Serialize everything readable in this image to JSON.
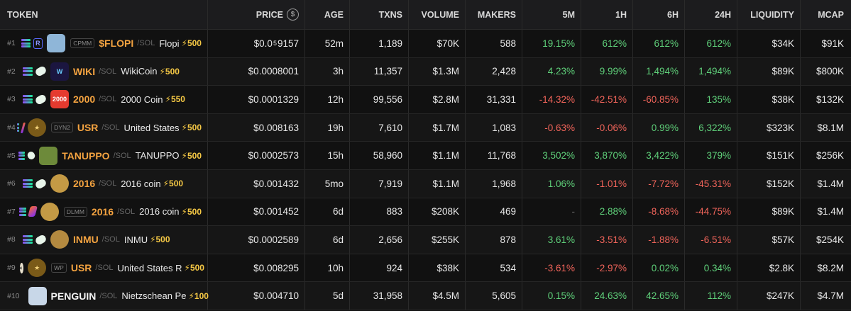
{
  "header": {
    "token": "TOKEN",
    "price": "PRICE",
    "price_icon": "$",
    "age": "AGE",
    "txns": "TXNS",
    "volume": "VOLUME",
    "makers": "MAKERS",
    "m5": "5M",
    "h1": "1H",
    "h6": "6H",
    "h24": "24H",
    "liquidity": "LIQUIDITY",
    "mcap": "MCAP"
  },
  "colors": {
    "positive": "#5fd07a",
    "negative": "#f0645a",
    "symbol": "#f4a340",
    "boost": "#f6c945"
  },
  "rows": [
    {
      "rank": "#1",
      "dex": "raydium",
      "badge": "CPMM",
      "symbol": "$FLOPI",
      "quote": "/SOL",
      "name": "Flopi",
      "boost": "⚡500",
      "price_a": "$0.0",
      "price_sub": "5",
      "price_b": "9157",
      "age": "52m",
      "txns": "1,189",
      "volume": "$70K",
      "makers": "588",
      "m5": "19.15%",
      "h1": "612%",
      "h6": "612%",
      "h24": "612%",
      "liquidity": "$34K",
      "mcap": "$91K",
      "m5_dir": "up",
      "h1_dir": "up",
      "h6_dir": "up",
      "h24_dir": "up",
      "avatar": "av-flopi",
      "avatar_text": ""
    },
    {
      "rank": "#2",
      "dex": "pump",
      "badge": "",
      "symbol": "WIKI",
      "quote": "/SOL",
      "name": "WikiCoin",
      "boost": "⚡500",
      "price": "$0.0008001",
      "age": "3h",
      "txns": "11,357",
      "volume": "$1.3M",
      "makers": "2,428",
      "m5": "4.23%",
      "h1": "9.99%",
      "h6": "1,494%",
      "h24": "1,494%",
      "liquidity": "$89K",
      "mcap": "$800K",
      "m5_dir": "up",
      "h1_dir": "up",
      "h6_dir": "up",
      "h24_dir": "up",
      "avatar": "av-wiki",
      "avatar_text": "W"
    },
    {
      "rank": "#3",
      "dex": "pump",
      "badge": "",
      "symbol": "2000",
      "quote": "/SOL",
      "name": "2000 Coin",
      "boost": "⚡550",
      "price": "$0.0001329",
      "age": "12h",
      "txns": "99,556",
      "volume": "$2.8M",
      "makers": "31,331",
      "m5": "-14.32%",
      "h1": "-42.51%",
      "h6": "-60.85%",
      "h24": "135%",
      "liquidity": "$38K",
      "mcap": "$132K",
      "m5_dir": "down",
      "h1_dir": "down",
      "h6_dir": "down",
      "h24_dir": "up",
      "avatar": "av-2000",
      "avatar_text": "2000"
    },
    {
      "rank": "#4",
      "dex": "meteora",
      "badge": "DYN2",
      "symbol": "USR",
      "quote": "/SOL",
      "name": "United States",
      "boost": "⚡500",
      "price": "$0.008163",
      "age": "19h",
      "txns": "7,610",
      "volume": "$1.7M",
      "makers": "1,083",
      "m5": "-0.63%",
      "h1": "-0.06%",
      "h6": "0.99%",
      "h24": "6,322%",
      "liquidity": "$323K",
      "mcap": "$8.1M",
      "m5_dir": "down",
      "h1_dir": "down",
      "h6_dir": "up",
      "h24_dir": "up",
      "avatar": "av-usr",
      "avatar_text": "★"
    },
    {
      "rank": "#5",
      "dex": "pump",
      "badge": "",
      "symbol": "TANUPPO",
      "quote": "/SOL",
      "name": "TANUPPO",
      "boost": "⚡500",
      "price": "$0.0002573",
      "age": "15h",
      "txns": "58,960",
      "volume": "$1.1M",
      "makers": "11,768",
      "m5": "3,502%",
      "h1": "3,870%",
      "h6": "3,422%",
      "h24": "379%",
      "liquidity": "$151K",
      "mcap": "$256K",
      "m5_dir": "up",
      "h1_dir": "up",
      "h6_dir": "up",
      "h24_dir": "up",
      "avatar": "av-tanu",
      "avatar_text": ""
    },
    {
      "rank": "#6",
      "dex": "pump",
      "badge": "",
      "symbol": "2016",
      "quote": "/SOL",
      "name": "2016 coin",
      "boost": "⚡500",
      "price": "$0.001432",
      "age": "5mo",
      "txns": "7,919",
      "volume": "$1.1M",
      "makers": "1,968",
      "m5": "1.06%",
      "h1": "-1.01%",
      "h6": "-7.72%",
      "h24": "-45.31%",
      "liquidity": "$152K",
      "mcap": "$1.4M",
      "m5_dir": "up",
      "h1_dir": "down",
      "h6_dir": "down",
      "h24_dir": "down",
      "avatar": "av-coin",
      "avatar_text": ""
    },
    {
      "rank": "#7",
      "dex": "meteora",
      "badge": "DLMM",
      "symbol": "2016",
      "quote": "/SOL",
      "name": "2016 coin",
      "boost": "⚡500",
      "price": "$0.001452",
      "age": "6d",
      "txns": "883",
      "volume": "$208K",
      "makers": "469",
      "m5": "-",
      "h1": "2.88%",
      "h6": "-8.68%",
      "h24": "-44.75%",
      "liquidity": "$89K",
      "mcap": "$1.4M",
      "m5_dir": "none",
      "h1_dir": "up",
      "h6_dir": "down",
      "h24_dir": "down",
      "avatar": "av-coin",
      "avatar_text": ""
    },
    {
      "rank": "#8",
      "dex": "pump",
      "badge": "",
      "symbol": "INMU",
      "quote": "/SOL",
      "name": "INMU",
      "boost": "⚡500",
      "price": "$0.0002589",
      "age": "6d",
      "txns": "2,656",
      "volume": "$255K",
      "makers": "878",
      "m5": "3.61%",
      "h1": "-3.51%",
      "h6": "-1.88%",
      "h24": "-6.51%",
      "liquidity": "$57K",
      "mcap": "$254K",
      "m5_dir": "up",
      "h1_dir": "down",
      "h6_dir": "down",
      "h24_dir": "down",
      "avatar": "av-inmu",
      "avatar_text": ""
    },
    {
      "rank": "#9",
      "dex": "moon",
      "badge": "WP",
      "symbol": "USR",
      "quote": "/SOL",
      "name": "United States R",
      "boost": "⚡500",
      "price": "$0.008295",
      "age": "10h",
      "txns": "924",
      "volume": "$38K",
      "makers": "534",
      "m5": "-3.61%",
      "h1": "-2.97%",
      "h6": "0.02%",
      "h24": "0.34%",
      "liquidity": "$2.8K",
      "mcap": "$8.2M",
      "m5_dir": "down",
      "h1_dir": "down",
      "h6_dir": "up",
      "h24_dir": "up",
      "avatar": "av-usr",
      "avatar_text": "★"
    },
    {
      "rank": "#10",
      "dex": "pump",
      "badge": "",
      "symbol": "PENGUIN",
      "quote": "/SOL",
      "name": "Nietzschean Pe",
      "boost": "⚡100",
      "price": "$0.004710",
      "age": "5d",
      "txns": "31,958",
      "volume": "$4.5M",
      "makers": "5,605",
      "m5": "0.15%",
      "h1": "24.63%",
      "h6": "42.65%",
      "h24": "112%",
      "liquidity": "$247K",
      "mcap": "$4.7M",
      "m5_dir": "up",
      "h1_dir": "up",
      "h6_dir": "up",
      "h24_dir": "up",
      "avatar": "av-peng",
      "avatar_text": "",
      "symbol_white": true
    }
  ]
}
